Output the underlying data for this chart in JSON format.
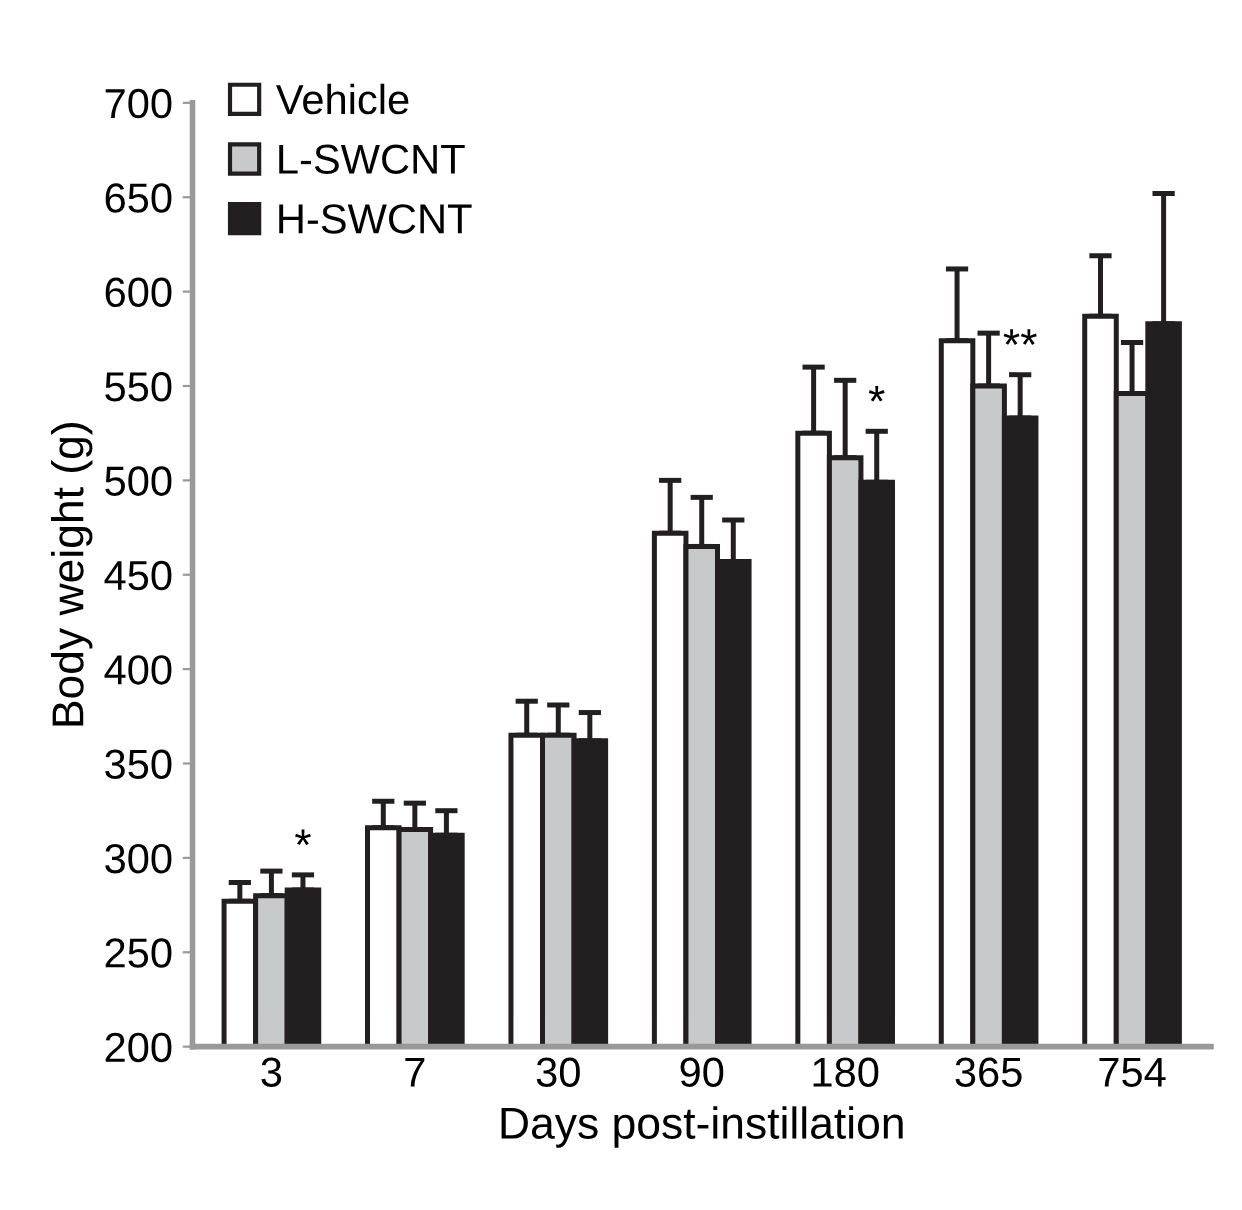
{
  "chart_data": {
    "type": "bar",
    "xlabel": "Days post-instillation",
    "ylabel": "Body weight (g)",
    "categories": [
      "3",
      "7",
      "30",
      "90",
      "180",
      "365",
      "754"
    ],
    "series": [
      {
        "name": "Vehicle",
        "color": "#ffffff",
        "values": [
          277,
          316,
          365,
          472,
          525,
          574,
          587
        ],
        "errors": [
          10,
          14,
          18,
          28,
          35,
          38,
          32
        ]
      },
      {
        "name": "L-SWCNT",
        "color": "#c8c9cb",
        "values": [
          280,
          315,
          365,
          465,
          512,
          550,
          546
        ],
        "errors": [
          13,
          14,
          16,
          26,
          41,
          28,
          27
        ]
      },
      {
        "name": "H-SWCNT",
        "color": "#231f20",
        "values": [
          283,
          312,
          362,
          457,
          499,
          533,
          583
        ],
        "errors": [
          8,
          13,
          15,
          22,
          27,
          23,
          69
        ]
      }
    ],
    "ylim": [
      200,
      700
    ],
    "yticks": [
      200,
      250,
      300,
      350,
      400,
      450,
      500,
      550,
      600,
      650,
      700
    ],
    "legend": "top left",
    "grid": false,
    "annotations": [
      {
        "text": "*",
        "x": "3",
        "y": 291
      },
      {
        "text": "*",
        "x": "180",
        "y": 526
      },
      {
        "text": "**",
        "x": "365",
        "y": 556
      }
    ]
  }
}
